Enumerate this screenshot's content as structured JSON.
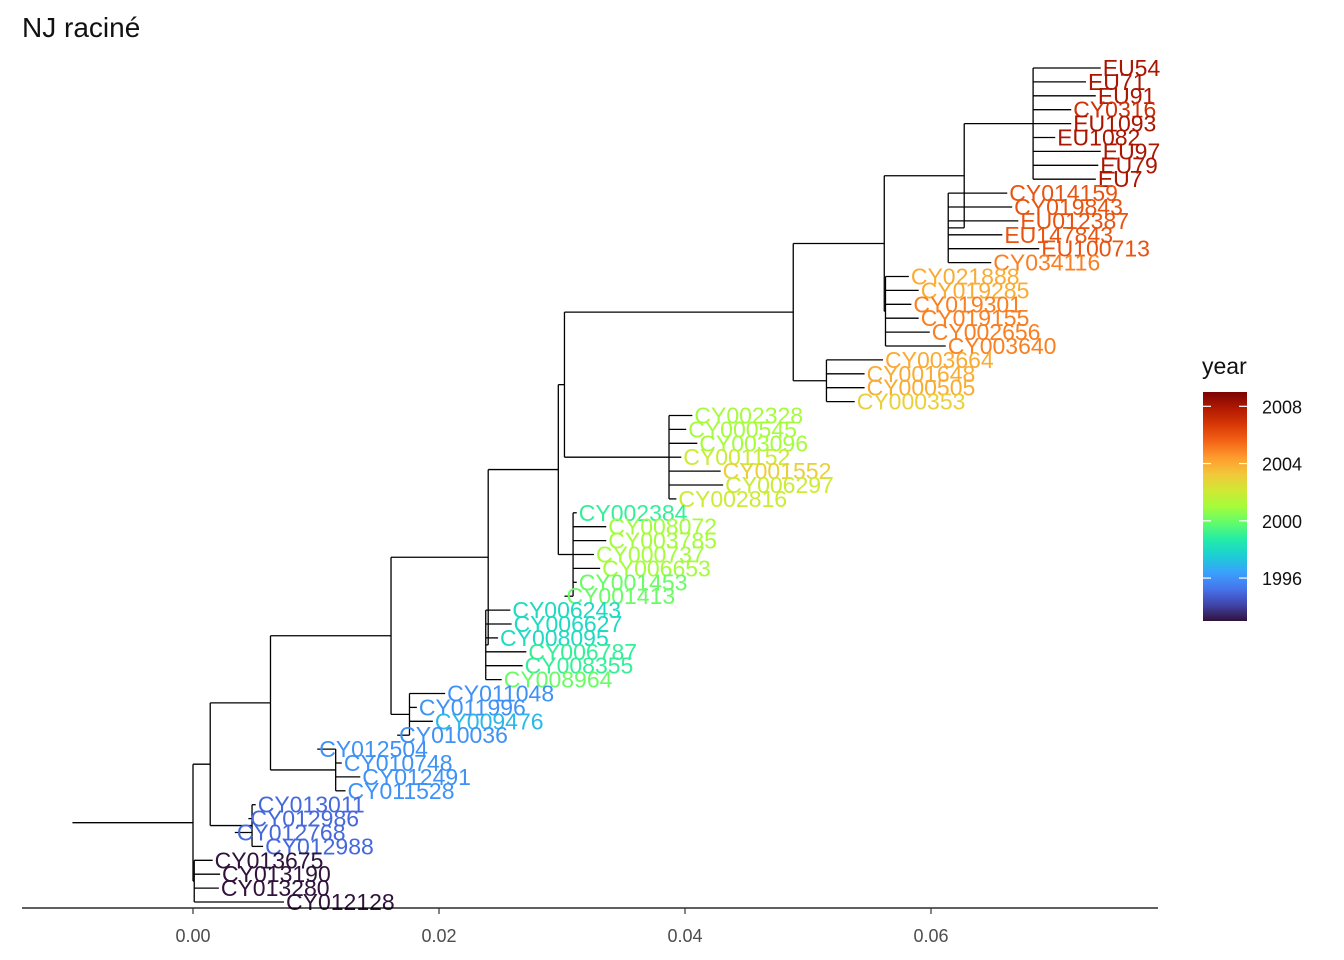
{
  "chart_data": {
    "type": "tree",
    "title": "NJ raciné",
    "xlabel": "",
    "ylabel": "",
    "x_ticks": [
      "0.00",
      "0.02",
      "0.04",
      "0.06"
    ],
    "x_tick_values": [
      0.0,
      0.02,
      0.04,
      0.06
    ],
    "xlim": [
      -0.0098,
      0.078
    ],
    "color_scale": {
      "title": "year",
      "ticks": [
        "1996",
        "2000",
        "2004",
        "2008"
      ],
      "tick_values": [
        1996,
        2000,
        2004,
        2008
      ],
      "range": [
        1993,
        2009
      ],
      "colors": [
        "#30123b",
        "#4145ab",
        "#4675ed",
        "#39a2fc",
        "#1bcfd4",
        "#24eca6",
        "#61fc6c",
        "#a4fc3b",
        "#d1e834",
        "#f3c63a",
        "#fe9b2d",
        "#f36315",
        "#d93806",
        "#b11901",
        "#7a0402"
      ]
    },
    "root_x": -0.0098,
    "tips": [
      {
        "label": "EU54",
        "x": 0.0738,
        "year": 2008
      },
      {
        "label": "EU71",
        "x": 0.0726,
        "year": 2008
      },
      {
        "label": "EU91",
        "x": 0.0734,
        "year": 2008
      },
      {
        "label": "CY0316",
        "x": 0.0714,
        "year": 2007
      },
      {
        "label": "EU1093",
        "x": 0.0714,
        "year": 2008
      },
      {
        "label": "EU1082",
        "x": 0.0701,
        "year": 2008
      },
      {
        "label": "EU97",
        "x": 0.0738,
        "year": 2008
      },
      {
        "label": "EU79",
        "x": 0.0736,
        "year": 2008
      },
      {
        "label": "EU7",
        "x": 0.0734,
        "year": 2008
      },
      {
        "label": "CY014159",
        "x": 0.0662,
        "year": 2006
      },
      {
        "label": "CY019843",
        "x": 0.0666,
        "year": 2006
      },
      {
        "label": "EU012387",
        "x": 0.0671,
        "year": 2006
      },
      {
        "label": "EU147843",
        "x": 0.0658,
        "year": 2006
      },
      {
        "label": "EU100713",
        "x": 0.0688,
        "year": 2006
      },
      {
        "label": "CY034116",
        "x": 0.0649,
        "year": 2005
      },
      {
        "label": "CY021888",
        "x": 0.0582,
        "year": 2004
      },
      {
        "label": "CY019285",
        "x": 0.059,
        "year": 2004
      },
      {
        "label": "CY019301",
        "x": 0.0584,
        "year": 2005
      },
      {
        "label": "CY019155",
        "x": 0.059,
        "year": 2005
      },
      {
        "label": "CY002656",
        "x": 0.0599,
        "year": 2005
      },
      {
        "label": "CY003640",
        "x": 0.0612,
        "year": 2005
      },
      {
        "label": "CY003664",
        "x": 0.0561,
        "year": 2004
      },
      {
        "label": "CY001648",
        "x": 0.0546,
        "year": 2004
      },
      {
        "label": "CY000505",
        "x": 0.0546,
        "year": 2004
      },
      {
        "label": "CY000353",
        "x": 0.0538,
        "year": 2003
      },
      {
        "label": "CY002328",
        "x": 0.0406,
        "year": 2001
      },
      {
        "label": "CY000545",
        "x": 0.0401,
        "year": 2001
      },
      {
        "label": "CY003096",
        "x": 0.041,
        "year": 2001
      },
      {
        "label": "CY001152",
        "x": 0.0397,
        "year": 2002
      },
      {
        "label": "CY001552",
        "x": 0.0429,
        "year": 2003
      },
      {
        "label": "CY006297",
        "x": 0.0431,
        "year": 2002
      },
      {
        "label": "CY002816",
        "x": 0.0393,
        "year": 2002
      },
      {
        "label": "CY002384",
        "x": 0.0312,
        "year": 1999
      },
      {
        "label": "CY008072",
        "x": 0.0336,
        "year": 2001
      },
      {
        "label": "CY003785",
        "x": 0.0336,
        "year": 2001
      },
      {
        "label": "CY000737",
        "x": 0.0326,
        "year": 2001
      },
      {
        "label": "CY006653",
        "x": 0.0331,
        "year": 2001
      },
      {
        "label": "CY001453",
        "x": 0.0312,
        "year": 2000
      },
      {
        "label": "CY001413",
        "x": 0.0302,
        "year": 2000
      },
      {
        "label": "CY006243",
        "x": 0.0258,
        "year": 1998
      },
      {
        "label": "CY006627",
        "x": 0.0259,
        "year": 1998
      },
      {
        "label": "CY008095",
        "x": 0.0248,
        "year": 1998
      },
      {
        "label": "CY006787",
        "x": 0.0271,
        "year": 1999
      },
      {
        "label": "CY008355",
        "x": 0.0268,
        "year": 1999
      },
      {
        "label": "CY008964",
        "x": 0.0251,
        "year": 2000
      },
      {
        "label": "CY011048",
        "x": 0.0205,
        "year": 1996
      },
      {
        "label": "CY011996",
        "x": 0.0182,
        "year": 1996
      },
      {
        "label": "CY009476",
        "x": 0.0195,
        "year": 1997
      },
      {
        "label": "CY010036",
        "x": 0.0166,
        "year": 1996
      },
      {
        "label": "CY012504",
        "x": 0.0101,
        "year": 1996
      },
      {
        "label": "CY010748",
        "x": 0.0121,
        "year": 1996
      },
      {
        "label": "CY012491",
        "x": 0.0136,
        "year": 1996
      },
      {
        "label": "CY011528",
        "x": 0.0124,
        "year": 1996
      },
      {
        "label": "CY013011",
        "x": 0.0051,
        "year": 1995
      },
      {
        "label": "CY012986",
        "x": 0.0045,
        "year": 1995
      },
      {
        "label": "CY012768",
        "x": 0.0034,
        "year": 1995
      },
      {
        "label": "CY012988",
        "x": 0.0057,
        "year": 1995
      },
      {
        "label": "CY013675",
        "x": 0.0016,
        "year": 1993
      },
      {
        "label": "CY013190",
        "x": 0.0022,
        "year": 1993
      },
      {
        "label": "CY013280",
        "x": 0.0021,
        "year": 1993
      },
      {
        "label": "CY012128",
        "x": 0.0074,
        "year": 1993
      }
    ]
  }
}
